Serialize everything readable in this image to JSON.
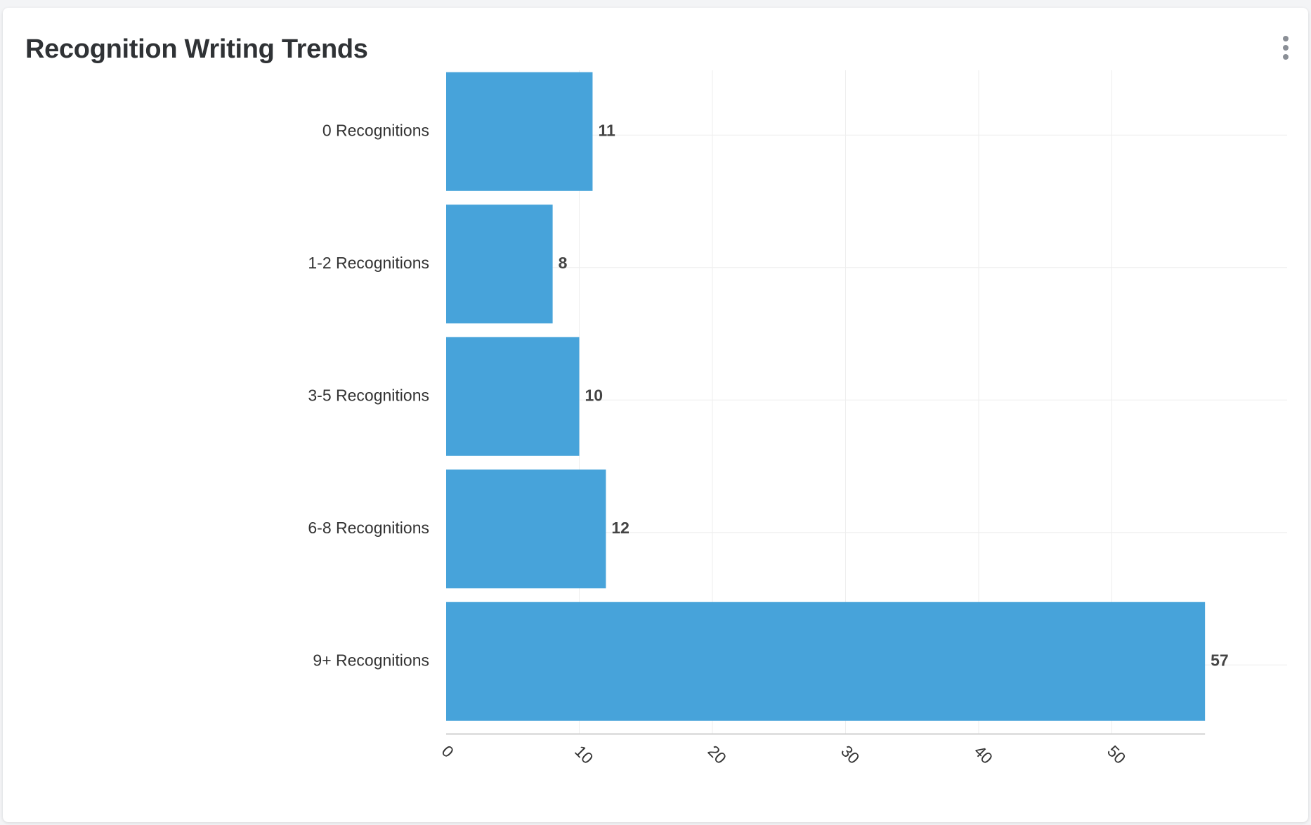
{
  "card": {
    "title": "Recognition Writing Trends",
    "menu_icon": "more-vertical-icon"
  },
  "colors": {
    "bar": "#47a3da",
    "grid": "#eeeeee",
    "axis": "#cfcfcf"
  },
  "chart_data": {
    "type": "bar",
    "orientation": "horizontal",
    "title": "Recognition Writing Trends",
    "categories": [
      "0 Recognitions",
      "1-2 Recognitions",
      "3-5 Recognitions",
      "6-8 Recognitions",
      "9+ Recognitions"
    ],
    "values": [
      11,
      8,
      10,
      12,
      57
    ],
    "xlim": [
      0,
      63
    ],
    "xticks": [
      0,
      10,
      20,
      30,
      40,
      50
    ],
    "xlabel": "",
    "ylabel": "",
    "grid": true,
    "data_labels": true
  }
}
